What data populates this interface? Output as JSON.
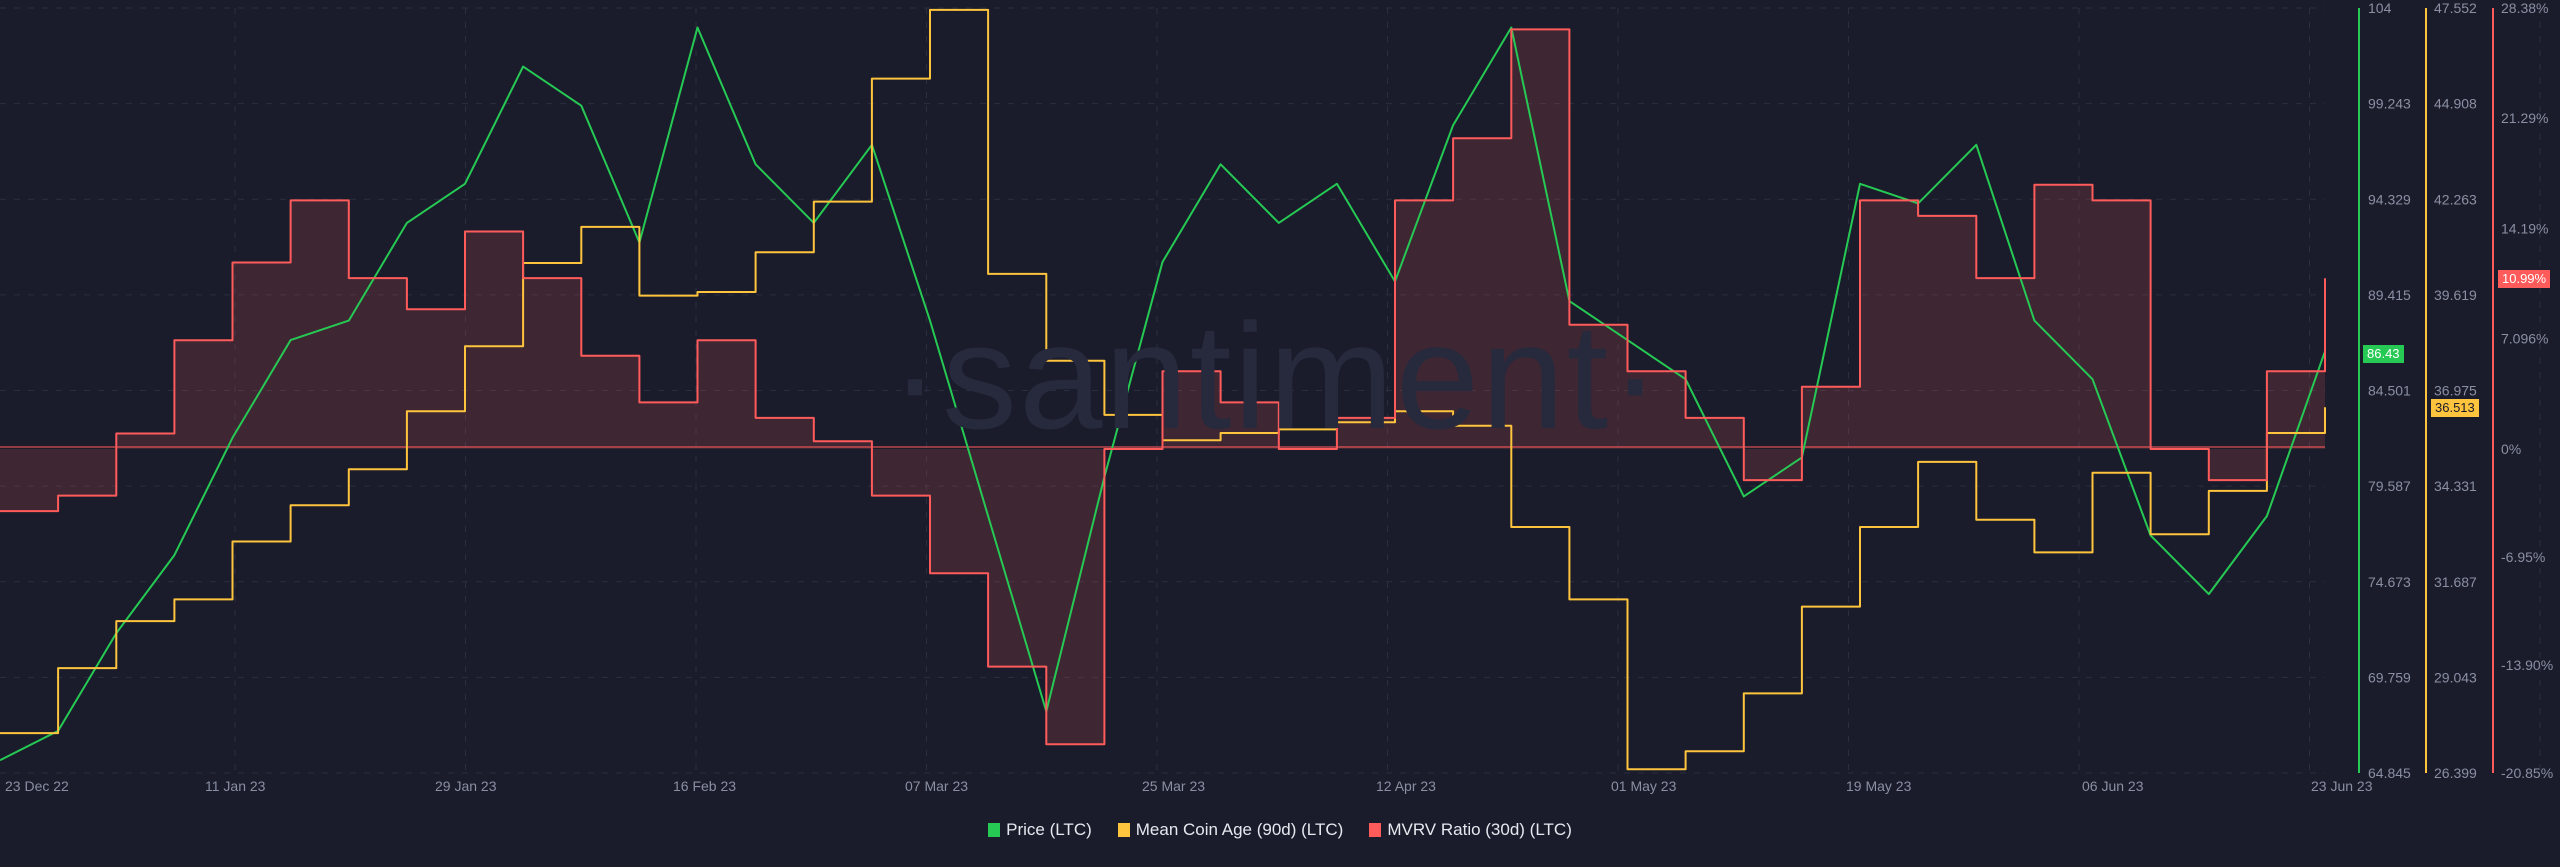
{
  "watermark": "·santiment·",
  "colors": {
    "background": "#1a1c2b",
    "price": "#26c953",
    "mean_coin_age": "#ffc43d",
    "mvrv": "#ff5b5b",
    "mvrv_fill": "rgba(255,91,91,0.16)",
    "axis_text": "#8a8fa3",
    "grid": "#2a2e40"
  },
  "legend": [
    {
      "label": "Price (LTC)",
      "color": "#26c953"
    },
    {
      "label": "Mean Coin Age (90d) (LTC)",
      "color": "#ffc43d"
    },
    {
      "label": "MVRV Ratio (30d) (LTC)",
      "color": "#ff5b5b"
    }
  ],
  "badges": {
    "price_current": "86.43",
    "mca_current": "36.513",
    "mvrv_current": "10.99%"
  },
  "chart_data": {
    "type": "line",
    "title": "",
    "xlabel": "",
    "x_ticks": [
      "23 Dec 22",
      "11 Jan 23",
      "29 Jan 23",
      "16 Feb 23",
      "07 Mar 23",
      "25 Mar 23",
      "12 Apr 23",
      "01 May 23",
      "19 May 23",
      "06 Jun 23",
      "23 Jun 23"
    ],
    "grid": true,
    "legend_position": "bottom",
    "axes": [
      {
        "series": "Price (LTC)",
        "ticks": [
          "104",
          "99.243",
          "94.329",
          "89.415",
          "84.501",
          "79.587",
          "74.673",
          "69.759",
          "64.845"
        ],
        "range": [
          64.845,
          104
        ]
      },
      {
        "series": "Mean Coin Age (90d) (LTC)",
        "ticks": [
          "47.552",
          "44.908",
          "42.263",
          "39.619",
          "36.975",
          "34.331",
          "31.687",
          "29.043",
          "26.399"
        ],
        "range": [
          26.399,
          47.552
        ]
      },
      {
        "series": "MVRV Ratio (30d) (LTC)",
        "ticks": [
          "28.38%",
          "21.29%",
          "14.19%",
          "7.096%",
          "0%",
          "-6.95%",
          "-13.90%",
          "-20.85%"
        ],
        "range": [
          -20.85,
          28.38
        ]
      }
    ],
    "series": [
      {
        "name": "Price (LTC)",
        "color": "#26c953",
        "x": [
          "23 Dec 22",
          "28 Dec 22",
          "02 Jan 23",
          "07 Jan 23",
          "11 Jan 23",
          "15 Jan 23",
          "20 Jan 23",
          "25 Jan 23",
          "29 Jan 23",
          "02 Feb 23",
          "06 Feb 23",
          "11 Feb 23",
          "16 Feb 23",
          "20 Feb 23",
          "25 Feb 23",
          "02 Mar 23",
          "07 Mar 23",
          "10 Mar 23",
          "14 Mar 23",
          "20 Mar 23",
          "25 Mar 23",
          "30 Mar 23",
          "04 Apr 23",
          "08 Apr 23",
          "12 Apr 23",
          "16 Apr 23",
          "20 Apr 23",
          "25 Apr 23",
          "01 May 23",
          "05 May 23",
          "10 May 23",
          "15 May 23",
          "19 May 23",
          "24 May 23",
          "29 May 23",
          "02 Jun 23",
          "06 Jun 23",
          "10 Jun 23",
          "15 Jun 23",
          "19 Jun 23",
          "23 Jun 23"
        ],
        "values": [
          65.5,
          67,
          72,
          76,
          82,
          87,
          88,
          93,
          95,
          101,
          99,
          92,
          103,
          96,
          93,
          97,
          88,
          78,
          68,
          80,
          91,
          96,
          93,
          95,
          90,
          98,
          103,
          89,
          87,
          85,
          79,
          81,
          95,
          94,
          97,
          88,
          85,
          77,
          74,
          78,
          86.43
        ]
      },
      {
        "name": "Mean Coin Age (90d) (LTC)",
        "color": "#ffc43d",
        "x": [
          "23 Dec 22",
          "28 Dec 22",
          "02 Jan 23",
          "07 Jan 23",
          "11 Jan 23",
          "15 Jan 23",
          "20 Jan 23",
          "25 Jan 23",
          "29 Jan 23",
          "02 Feb 23",
          "06 Feb 23",
          "11 Feb 23",
          "16 Feb 23",
          "20 Feb 23",
          "25 Feb 23",
          "02 Mar 23",
          "07 Mar 23",
          "10 Mar 23",
          "14 Mar 23",
          "20 Mar 23",
          "25 Mar 23",
          "30 Mar 23",
          "04 Apr 23",
          "08 Apr 23",
          "12 Apr 23",
          "16 Apr 23",
          "20 Apr 23",
          "25 Apr 23",
          "01 May 23",
          "05 May 23",
          "10 May 23",
          "15 May 23",
          "19 May 23",
          "24 May 23",
          "29 May 23",
          "02 Jun 23",
          "06 Jun 23",
          "10 Jun 23",
          "15 Jun 23",
          "19 Jun 23",
          "23 Jun 23"
        ],
        "values": [
          27.5,
          29.3,
          30.6,
          31.2,
          32.8,
          33.8,
          34.8,
          36.4,
          38.2,
          40.5,
          41.5,
          39.6,
          39.7,
          40.8,
          42.2,
          45.6,
          47.5,
          40.2,
          37.8,
          36.3,
          35.6,
          35.8,
          35.9,
          36.1,
          36.4,
          36.0,
          33.2,
          31.2,
          26.5,
          27.0,
          28.6,
          31.0,
          33.2,
          35.0,
          33.4,
          32.5,
          34.7,
          33.0,
          34.2,
          35.8,
          36.513
        ]
      },
      {
        "name": "MVRV Ratio (30d) (LTC)",
        "color": "#ff5b5b",
        "x": [
          "23 Dec 22",
          "28 Dec 22",
          "02 Jan 23",
          "07 Jan 23",
          "11 Jan 23",
          "15 Jan 23",
          "20 Jan 23",
          "25 Jan 23",
          "29 Jan 23",
          "02 Feb 23",
          "06 Feb 23",
          "11 Feb 23",
          "16 Feb 23",
          "20 Feb 23",
          "25 Feb 23",
          "02 Mar 23",
          "07 Mar 23",
          "10 Mar 23",
          "14 Mar 23",
          "20 Mar 23",
          "25 Mar 23",
          "30 Mar 23",
          "04 Apr 23",
          "08 Apr 23",
          "12 Apr 23",
          "16 Apr 23",
          "20 Apr 23",
          "25 Apr 23",
          "01 May 23",
          "05 May 23",
          "10 May 23",
          "15 May 23",
          "19 May 23",
          "24 May 23",
          "29 May 23",
          "02 Jun 23",
          "06 Jun 23",
          "10 Jun 23",
          "15 Jun 23",
          "19 Jun 23",
          "23 Jun 23"
        ],
        "values": [
          -4,
          -3,
          1,
          7,
          12,
          16,
          11,
          9,
          14,
          11,
          6,
          3,
          7,
          2,
          0.5,
          -3,
          -8,
          -14,
          -19,
          0,
          5,
          3,
          0,
          2,
          16,
          20,
          27,
          8,
          5,
          2,
          -2,
          4,
          16,
          15,
          11,
          17,
          16,
          0,
          -2,
          5,
          10.99
        ]
      }
    ]
  }
}
